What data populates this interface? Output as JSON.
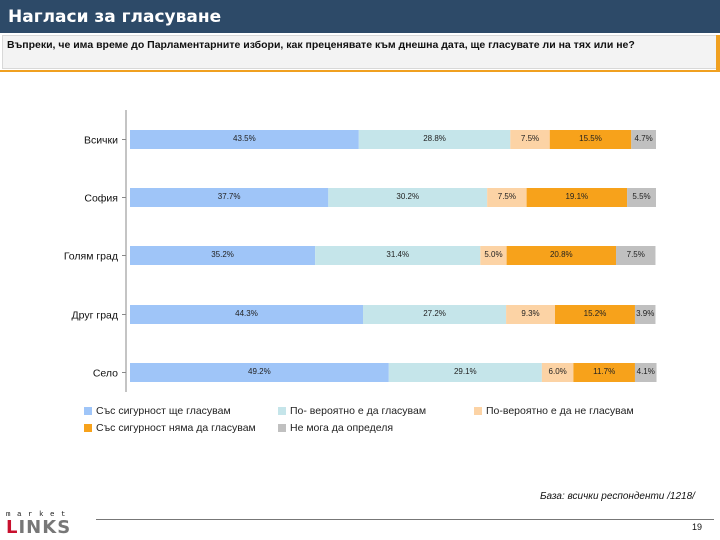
{
  "header": {
    "title": "Нагласи за гласуване",
    "question": "Въпреки, че има време до Парламентарните избори, как преценявате към днешна дата, ще гласувате ли на тях или не?"
  },
  "chart_data": {
    "type": "bar",
    "orientation": "horizontal",
    "stacked": true,
    "normalized": true,
    "categories": [
      "Всички",
      "София",
      "Голям град",
      "Друг град",
      "Село"
    ],
    "series": [
      {
        "name": "Със сигурност ще гласувам",
        "color": "#9fc5f8",
        "values": [
          43.5,
          37.7,
          35.2,
          44.3,
          49.2
        ],
        "labels": [
          "43.5%",
          "37.7%",
          "35.2%",
          "44.3%",
          "49.2%"
        ]
      },
      {
        "name": "По- вероятно е да гласувам",
        "color": "#c5e5ea",
        "values": [
          28.8,
          30.2,
          31.4,
          27.2,
          29.1
        ],
        "labels": [
          "28.8%",
          "30.2%",
          "31.4%",
          "27.2%",
          "29.1%"
        ]
      },
      {
        "name": "По-вероятно е да не гласувам",
        "color": "#fcd3a5",
        "values": [
          7.5,
          7.5,
          5.0,
          9.3,
          6.0
        ],
        "labels": [
          "7.5%",
          "7.5%",
          "5.0%",
          "9.3%",
          "6.0%"
        ]
      },
      {
        "name": "Със сигурност няма да гласувам",
        "color": "#f7a21b",
        "values": [
          15.5,
          19.1,
          20.8,
          15.2,
          11.7
        ],
        "labels": [
          "15.5%",
          "19.1%",
          "20.8%",
          "15.2%",
          "11.7%"
        ]
      },
      {
        "name": "Не мога да определя",
        "color": "#c0c0c0",
        "values": [
          4.7,
          5.5,
          7.5,
          3.9,
          4.1
        ],
        "labels": [
          "4.7%",
          "5.5%",
          "7.5%",
          "3.9%",
          "4.1%"
        ]
      }
    ],
    "xlim": [
      0,
      100
    ],
    "legend_position": "bottom"
  },
  "footer": {
    "base_note": "База: всички респонденти /1218/",
    "logo_top": "market",
    "logo_main_first": "L",
    "logo_main_rest": "INKS",
    "page_number": "19"
  }
}
